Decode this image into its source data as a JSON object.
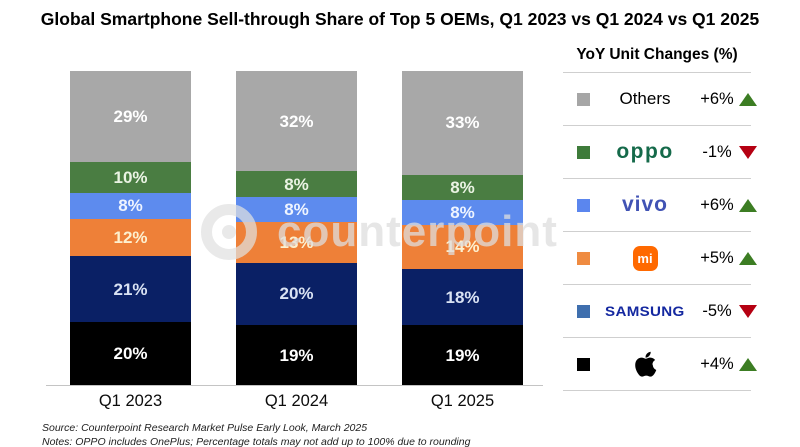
{
  "title": "Global Smartphone Sell-through Share of Top 5 OEMs, Q1 2023 vs Q1 2024 vs Q1 2025",
  "watermark": {
    "text": "counterpoint"
  },
  "legend": {
    "header": "YoY Unit Changes (%)",
    "up_color": "#3c7d23",
    "down_color": "#b50012",
    "rows": [
      {
        "brand": "Others",
        "logo_kind": "plain",
        "logo_text": "Others",
        "swatch": "#a6a6a6",
        "change": "+6%",
        "direction": "up"
      },
      {
        "brand": "OPPO",
        "logo_kind": "oppo",
        "logo_text": "oppo",
        "swatch": "#3e7b3a",
        "change": "-1%",
        "direction": "down"
      },
      {
        "brand": "vivo",
        "logo_kind": "vivo",
        "logo_text": "vivo",
        "swatch": "#5b86ee",
        "change": "+6%",
        "direction": "up"
      },
      {
        "brand": "Xiaomi",
        "logo_kind": "mi",
        "logo_text": "mi",
        "swatch": "#ef8b41",
        "change": "+5%",
        "direction": "up"
      },
      {
        "brand": "Samsung",
        "logo_kind": "samsung",
        "logo_text": "SAMSUNG",
        "swatch": "#3f6fae",
        "change": "-5%",
        "direction": "down"
      },
      {
        "brand": "Apple",
        "logo_kind": "apple",
        "logo_text": "",
        "swatch": "#000000",
        "change": "+4%",
        "direction": "up"
      }
    ]
  },
  "chart_data": {
    "type": "bar",
    "stacked": true,
    "title": "Global Smartphone Sell-through Share of Top 5 OEMs, Q1 2023 vs Q1 2024 vs Q1 2025",
    "categories": [
      "Q1 2023",
      "Q1 2024",
      "Q1 2025"
    ],
    "series": [
      {
        "name": "Apple",
        "color": "#000000",
        "label_color": "#ffffff",
        "values": [
          20,
          19,
          19
        ]
      },
      {
        "name": "Samsung",
        "color": "#0a2065",
        "label_color": "#d9e2f3",
        "values": [
          21,
          20,
          18
        ]
      },
      {
        "name": "Xiaomi",
        "color": "#ee8038",
        "label_color": "#fdf0cf",
        "values": [
          12,
          13,
          14
        ]
      },
      {
        "name": "vivo",
        "color": "#5d8bee",
        "label_color": "#eef4ff",
        "values": [
          8,
          8,
          8
        ]
      },
      {
        "name": "OPPO",
        "color": "#4a7d42",
        "label_color": "#eaf3e3",
        "values": [
          10,
          8,
          8
        ]
      },
      {
        "name": "Others",
        "color": "#a8a8a8",
        "label_color": "#ffffff",
        "values": [
          29,
          32,
          33
        ]
      }
    ],
    "series_order": "bottom-to-top",
    "value_suffix": "%",
    "ylim": [
      0,
      100
    ],
    "grid": false,
    "legend_position": "right"
  },
  "footer": {
    "source": "Source: Counterpoint Research Market Pulse Early Look, March 2025",
    "notes": "Notes: OPPO includes OnePlus; Percentage totals may not add up to 100% due to rounding"
  }
}
